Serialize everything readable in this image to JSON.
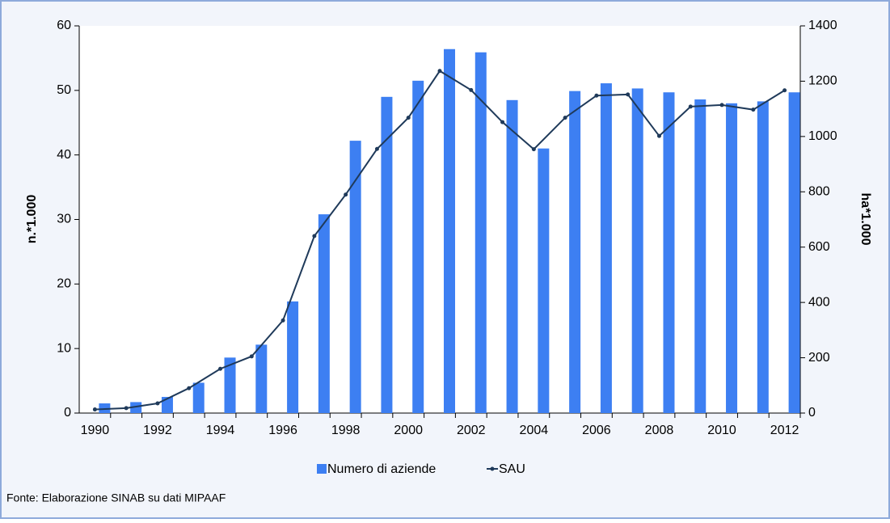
{
  "chart_data": {
    "type": "bar",
    "categories": [
      "1990",
      null,
      "1992",
      null,
      "1994",
      null,
      "1996",
      null,
      "1998",
      null,
      "2000",
      null,
      "2002",
      null,
      "2004",
      null,
      "2006",
      null,
      "2008",
      null,
      "2010",
      null,
      "2012"
    ],
    "series": [
      {
        "name": "Numero di aziende",
        "color": "#3d7ff2",
        "values": [
          1.5,
          1.7,
          2.5,
          4.7,
          8.6,
          10.6,
          17.3,
          30.8,
          42.2,
          49.0,
          51.5,
          56.4,
          55.9,
          48.5,
          41.0,
          49.9,
          51.1,
          50.3,
          49.7,
          48.6,
          48.0,
          48.3,
          49.7
        ]
      },
      {
        "name": "SAU",
        "type": "line",
        "axis": "y2",
        "color": "#1f3a5a",
        "values": [
          13,
          18,
          35,
          90,
          160,
          205,
          335,
          640,
          790,
          955,
          1068,
          1237,
          1168,
          1052,
          954,
          1068,
          1148,
          1152,
          1002,
          1108,
          1114,
          1097,
          1167
        ]
      }
    ],
    "ylabel": "n.*1.000",
    "y2label": "ha*1.000",
    "ylim": [
      0,
      60
    ],
    "yticks": [
      0,
      10,
      20,
      30,
      40,
      50,
      60
    ],
    "y2lim": [
      0,
      1400
    ],
    "y2ticks": [
      0,
      200,
      400,
      600,
      800,
      1000,
      1200,
      1400
    ],
    "legend": "bottom",
    "source": "Fonte: Elaborazione SINAB su dati MIPAAF"
  }
}
